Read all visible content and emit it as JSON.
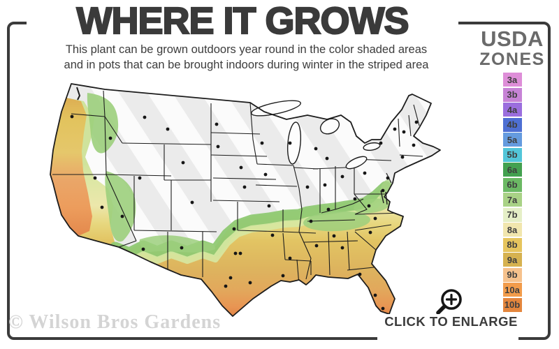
{
  "header": {
    "title": "WHERE IT GROWS",
    "subtitle_line1": "This plant can be grown outdoors year round in the color shaded areas",
    "subtitle_line2": "and in pots that can be brought indoors during winter in the striped area"
  },
  "legend": {
    "title_top": "USDA",
    "title_bottom": "ZONES",
    "zones": [
      {
        "label": "3a",
        "color": "#de8ed8"
      },
      {
        "label": "3b",
        "color": "#c783d6"
      },
      {
        "label": "4a",
        "color": "#9b6ede"
      },
      {
        "label": "4b",
        "color": "#4e6fd3"
      },
      {
        "label": "5a",
        "color": "#659bdf"
      },
      {
        "label": "5b",
        "color": "#53c6d9"
      },
      {
        "label": "6a",
        "color": "#43a150"
      },
      {
        "label": "6b",
        "color": "#6bb964"
      },
      {
        "label": "7a",
        "color": "#a9d286"
      },
      {
        "label": "7b",
        "color": "#e5efc7"
      },
      {
        "label": "8a",
        "color": "#f1e6ae"
      },
      {
        "label": "8b",
        "color": "#e6c55e"
      },
      {
        "label": "9a",
        "color": "#d6b250"
      },
      {
        "label": "9b",
        "color": "#f6c28d"
      },
      {
        "label": "10a",
        "color": "#f29c4b"
      },
      {
        "label": "10b",
        "color": "#e4863d"
      }
    ]
  },
  "map": {
    "region": "Continental United States",
    "striped_fill_color": "#ebebeb",
    "outline_color": "#1c1c1c",
    "city_dots": [
      [
        63,
        62
      ],
      [
        118,
        93
      ],
      [
        167,
        63
      ],
      [
        200,
        80
      ],
      [
        270,
        73
      ],
      [
        272,
        105
      ],
      [
        222,
        128
      ],
      [
        160,
        150
      ],
      [
        96,
        150
      ],
      [
        106,
        192
      ],
      [
        135,
        205
      ],
      [
        235,
        185
      ],
      [
        220,
        250
      ],
      [
        165,
        252
      ],
      [
        305,
        135
      ],
      [
        310,
        163
      ],
      [
        295,
        223
      ],
      [
        297,
        258
      ],
      [
        304,
        258
      ],
      [
        290,
        293
      ],
      [
        283,
        305
      ],
      [
        318,
        300
      ],
      [
        335,
        100
      ],
      [
        340,
        145
      ],
      [
        345,
        190
      ],
      [
        350,
        232
      ],
      [
        365,
        290
      ],
      [
        375,
        100
      ],
      [
        400,
        163
      ],
      [
        425,
        160
      ],
      [
        450,
        148
      ],
      [
        412,
        108
      ],
      [
        428,
        122
      ],
      [
        405,
        212
      ],
      [
        430,
        195
      ],
      [
        413,
        247
      ],
      [
        375,
        265
      ],
      [
        438,
        233
      ],
      [
        450,
        250
      ],
      [
        490,
        228
      ],
      [
        497,
        208
      ],
      [
        488,
        190
      ],
      [
        468,
        180
      ],
      [
        482,
        143
      ],
      [
        505,
        100
      ],
      [
        515,
        150
      ],
      [
        508,
        168
      ],
      [
        525,
        80
      ],
      [
        538,
        84
      ],
      [
        556,
        70
      ],
      [
        552,
        103
      ],
      [
        536,
        120
      ],
      [
        475,
        288
      ],
      [
        497,
        318
      ],
      [
        508,
        337
      ]
    ]
  },
  "footer": {
    "watermark": "© Wilson Bros Gardens",
    "enlarge_label": "CLICK TO ENLARGE"
  },
  "colors": {
    "frame": "#3b3b3b",
    "title_text": "#3a3a3a",
    "legend_title_text": "#6a6a6a"
  }
}
